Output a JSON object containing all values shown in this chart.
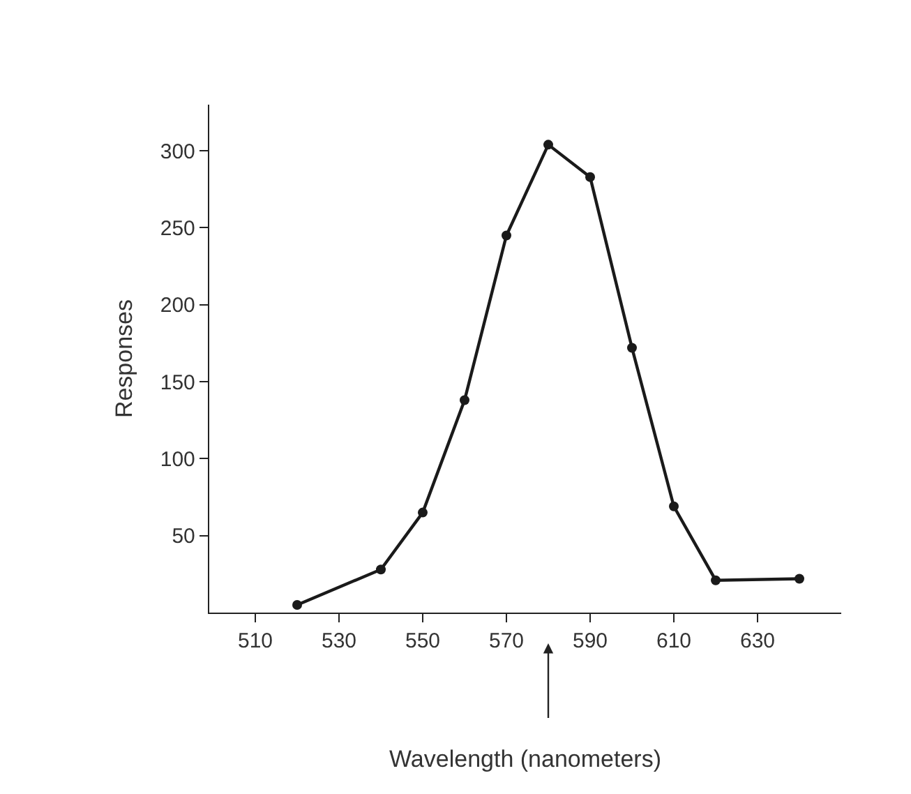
{
  "chart_data": {
    "type": "line",
    "xlabel": "Wavelength (nanometers)",
    "ylabel": "Responses",
    "x": [
      520,
      540,
      550,
      560,
      570,
      580,
      590,
      600,
      610,
      620,
      640
    ],
    "series": [
      {
        "color": "#1a1a1a",
        "values": [
          5,
          28,
          65,
          138,
          245,
          304,
          283,
          172,
          69,
          21,
          22
        ]
      }
    ],
    "xlim": [
      499,
      650
    ],
    "xticks": [
      510,
      530,
      550,
      570,
      590,
      610,
      630
    ],
    "ylim": [
      0,
      330
    ],
    "yticks": [
      50,
      100,
      150,
      200,
      250,
      300
    ],
    "legend": false,
    "marker": "circle",
    "line_style": "solid"
  }
}
